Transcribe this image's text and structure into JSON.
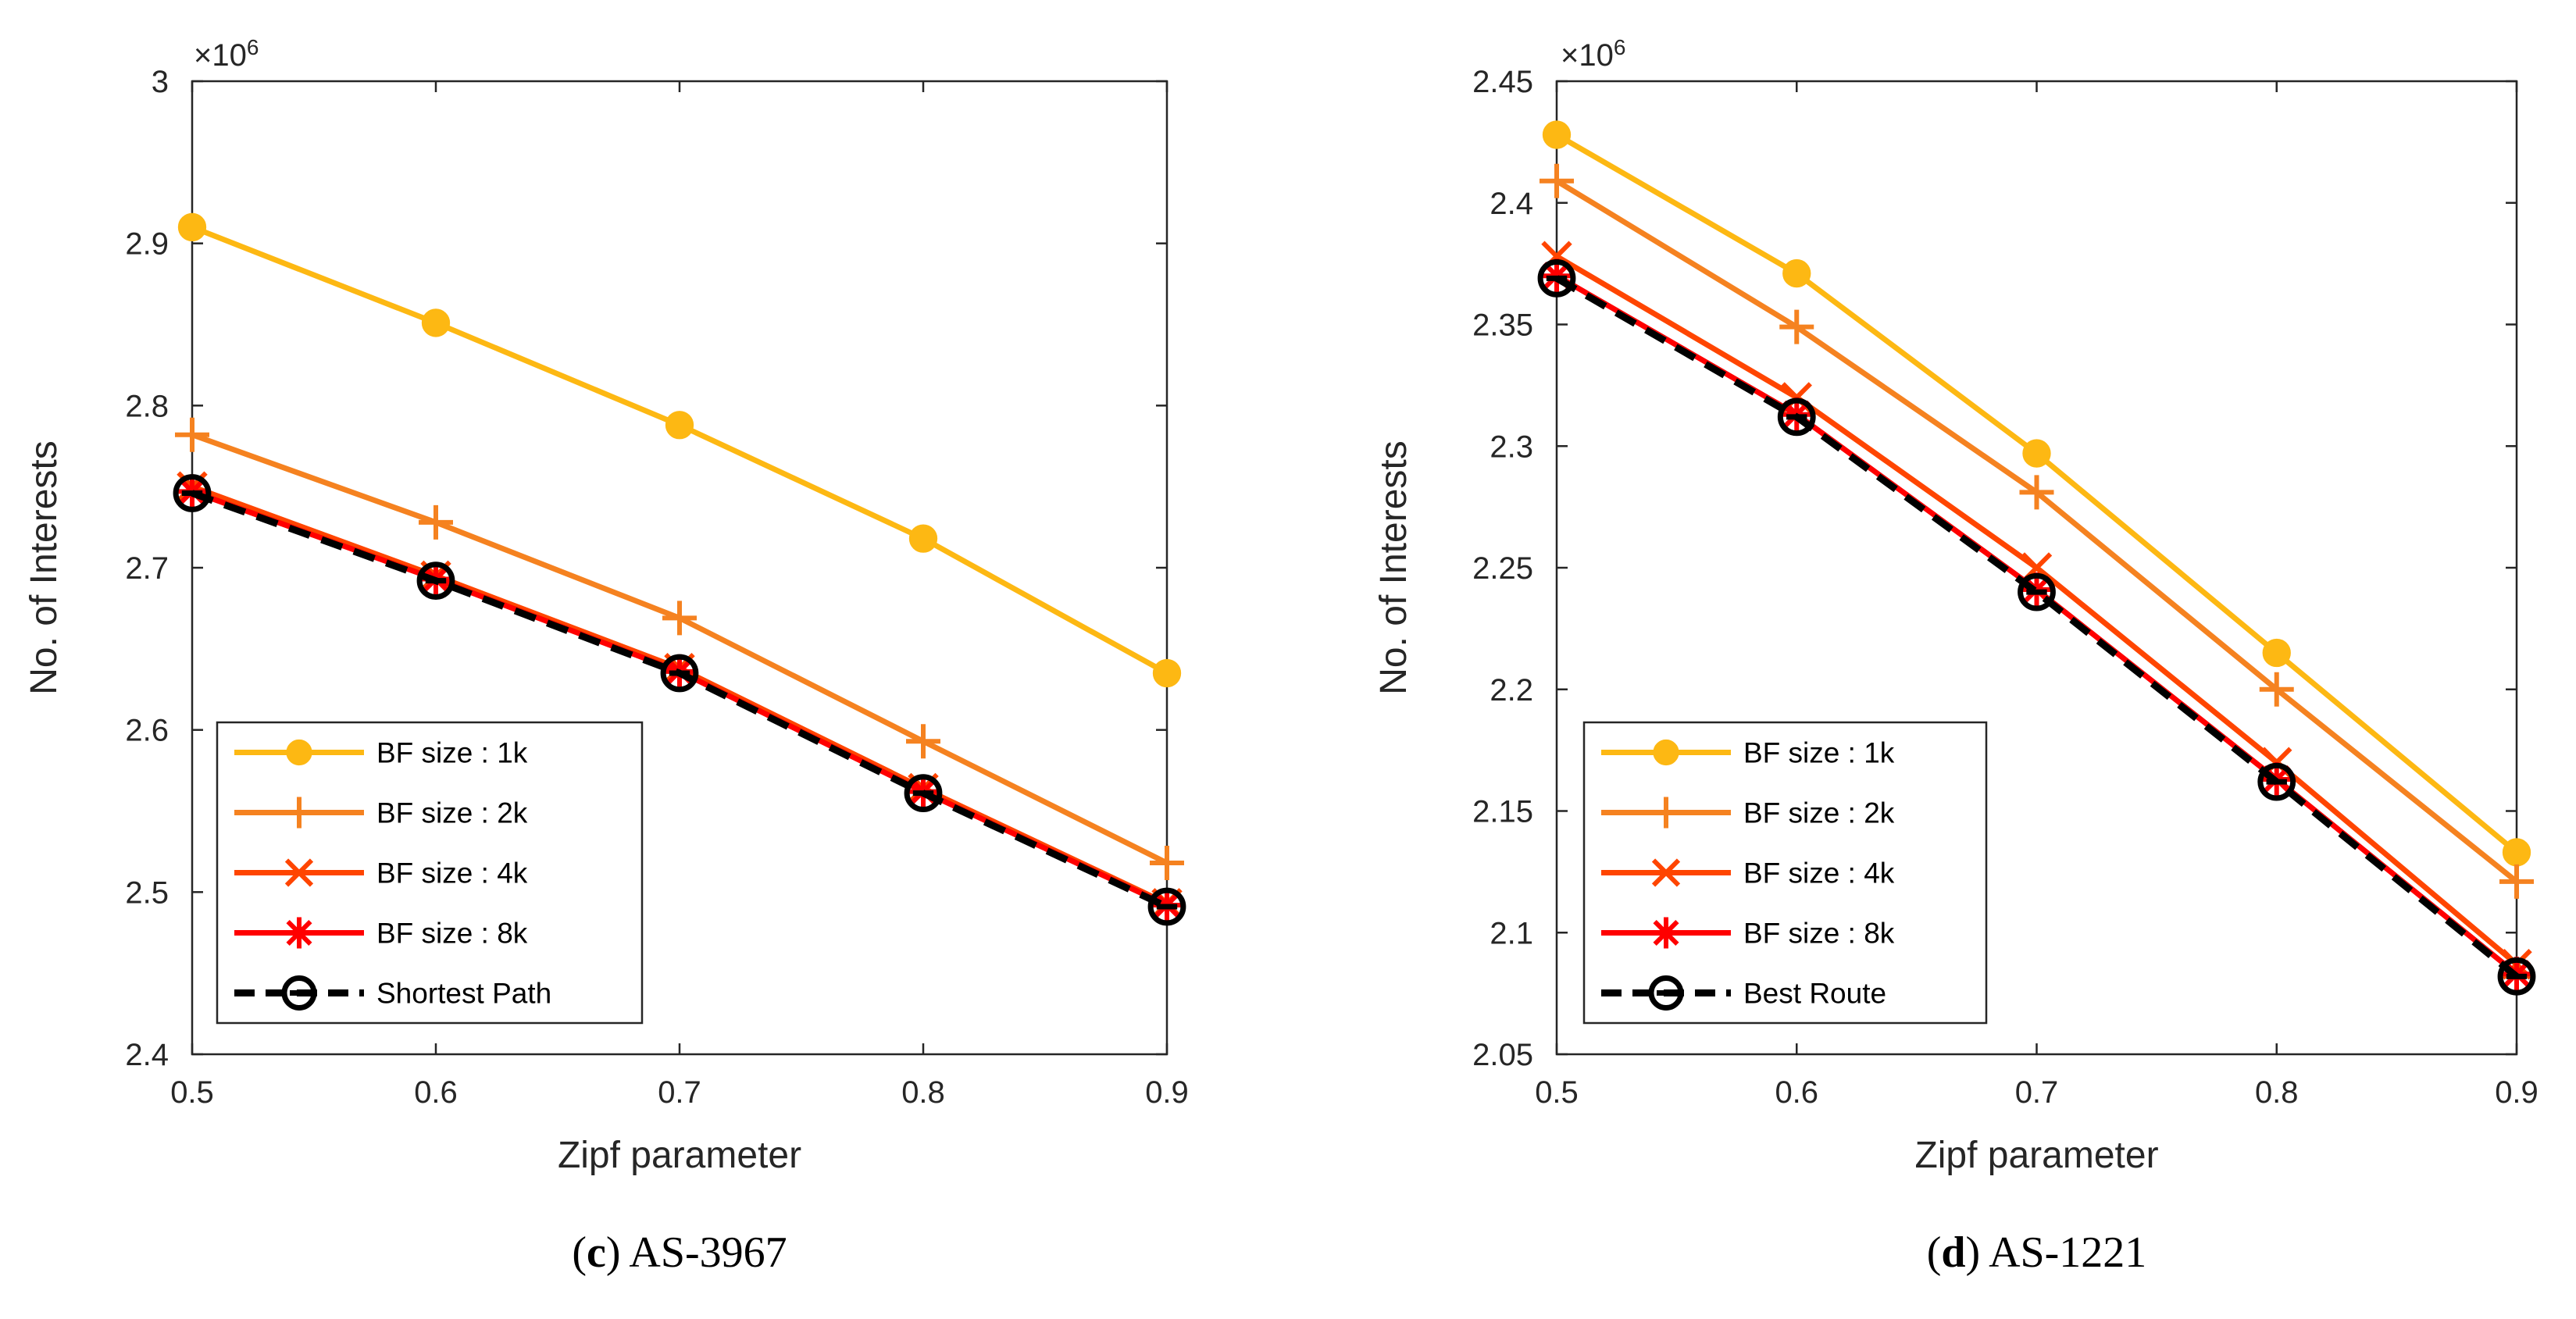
{
  "chart_data": [
    {
      "type": "line",
      "caption_letter": "c",
      "caption_text": " AS-3967",
      "exponent_prefix": "×10",
      "exponent_power": "6",
      "xlabel": "Zipf parameter",
      "ylabel": "No. of Interests",
      "x": [
        0.5,
        0.6,
        0.7,
        0.8,
        0.9
      ],
      "xticks": [
        "0.5",
        "0.6",
        "0.7",
        "0.8",
        "0.9"
      ],
      "xlim": [
        0.5,
        0.9
      ],
      "ylim": [
        2.4,
        3.0
      ],
      "yticks": [
        "2.4",
        "2.5",
        "2.6",
        "2.7",
        "2.8",
        "2.9",
        "3"
      ],
      "ytick_values": [
        2.4,
        2.5,
        2.6,
        2.7,
        2.8,
        2.9,
        3.0
      ],
      "legend_position": "bottom-left",
      "series": [
        {
          "name": "BF size : 1k",
          "marker": "circle",
          "color": "#FDB813",
          "values": [
            2.91,
            2.851,
            2.788,
            2.718,
            2.635
          ]
        },
        {
          "name": "BF size : 2k",
          "marker": "plus",
          "color": "#F58220",
          "values": [
            2.782,
            2.728,
            2.669,
            2.593,
            2.518
          ]
        },
        {
          "name": "BF size : 4k",
          "marker": "x",
          "color": "#FF4500",
          "values": [
            2.75,
            2.695,
            2.638,
            2.564,
            2.493
          ]
        },
        {
          "name": "BF size : 8k",
          "marker": "star",
          "color": "#FF0000",
          "values": [
            2.747,
            2.693,
            2.636,
            2.562,
            2.492
          ]
        },
        {
          "name": "Shortest Path",
          "marker": "circle-minus",
          "color": "#000000",
          "dashed": true,
          "values": [
            2.746,
            2.692,
            2.635,
            2.561,
            2.491
          ]
        }
      ]
    },
    {
      "type": "line",
      "caption_letter": "d",
      "caption_text": " AS-1221",
      "exponent_prefix": "×10",
      "exponent_power": "6",
      "xlabel": "Zipf parameter",
      "ylabel": "No. of Interests",
      "x": [
        0.5,
        0.6,
        0.7,
        0.8,
        0.9
      ],
      "xticks": [
        "0.5",
        "0.6",
        "0.7",
        "0.8",
        "0.9"
      ],
      "xlim": [
        0.5,
        0.9
      ],
      "ylim": [
        2.05,
        2.45
      ],
      "yticks": [
        "2.05",
        "2.1",
        "2.15",
        "2.2",
        "2.25",
        "2.3",
        "2.35",
        "2.4",
        "2.45"
      ],
      "ytick_values": [
        2.05,
        2.1,
        2.15,
        2.2,
        2.25,
        2.3,
        2.35,
        2.4,
        2.45
      ],
      "legend_position": "bottom-left",
      "series": [
        {
          "name": "BF size : 1k",
          "marker": "circle",
          "color": "#FDB813",
          "values": [
            2.428,
            2.371,
            2.297,
            2.215,
            2.133
          ]
        },
        {
          "name": "BF size : 2k",
          "marker": "plus",
          "color": "#F58220",
          "values": [
            2.409,
            2.349,
            2.281,
            2.2,
            2.121
          ]
        },
        {
          "name": "BF size : 4k",
          "marker": "x",
          "color": "#FF4500",
          "values": [
            2.378,
            2.32,
            2.25,
            2.17,
            2.087
          ]
        },
        {
          "name": "BF size : 8k",
          "marker": "star",
          "color": "#FF0000",
          "values": [
            2.37,
            2.313,
            2.241,
            2.163,
            2.083
          ]
        },
        {
          "name": "Best Route",
          "marker": "circle-minus",
          "color": "#000000",
          "dashed": true,
          "values": [
            2.369,
            2.312,
            2.24,
            2.162,
            2.082
          ]
        }
      ]
    }
  ]
}
